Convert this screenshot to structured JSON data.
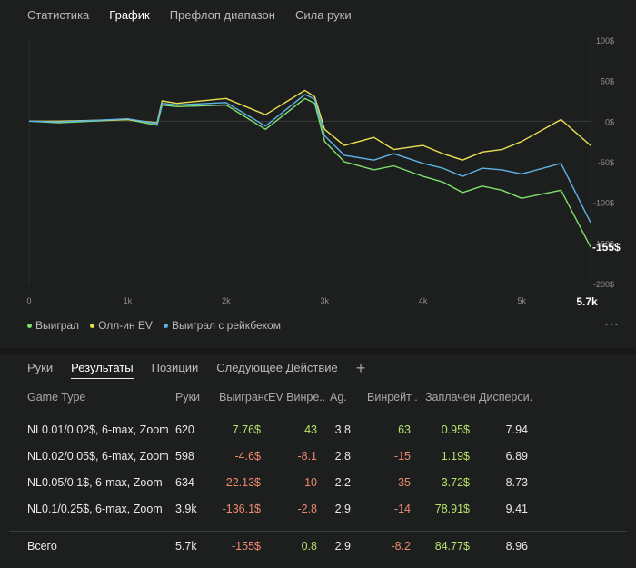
{
  "top_tabs": [
    {
      "label": "Статистика"
    },
    {
      "label": "График"
    },
    {
      "label": "Префлоп диапазон"
    },
    {
      "label": "Сила руки"
    }
  ],
  "colors": {
    "won": "#7ee06a",
    "allin_ev": "#e8e052",
    "won_rakeback": "#5fb2e6",
    "positive": "#b8e26a",
    "negative": "#ef8a6f"
  },
  "chart_data": {
    "type": "line",
    "x_ticks": [
      "0",
      "1k",
      "2k",
      "3k",
      "4k",
      "5k"
    ],
    "x_end_label": "5.7k",
    "y_ticks": [
      "100$",
      "50$",
      "0$",
      "-50$",
      "-100$",
      "-150$",
      "-200$"
    ],
    "end_value_label": "-155$",
    "xlim": [
      0,
      5700
    ],
    "ylim": [
      -200,
      100
    ],
    "grid": false,
    "legend_position": "bottom-left",
    "series": [
      {
        "name": "Выиграл",
        "color": "#7ee06a",
        "x": [
          0,
          300,
          1000,
          1300,
          1350,
          1500,
          2000,
          2400,
          2800,
          2900,
          3000,
          3200,
          3500,
          3700,
          4000,
          4200,
          4400,
          4600,
          4800,
          5000,
          5400,
          5700
        ],
        "y": [
          0,
          -2,
          2,
          -5,
          20,
          18,
          20,
          -10,
          28,
          22,
          -25,
          -50,
          -60,
          -55,
          -68,
          -75,
          -88,
          -80,
          -85,
          -95,
          -85,
          -155
        ]
      },
      {
        "name": "Олл-ин EV",
        "color": "#e8e052",
        "x": [
          0,
          300,
          1000,
          1300,
          1350,
          1500,
          2000,
          2400,
          2800,
          2900,
          3000,
          3200,
          3500,
          3700,
          4000,
          4200,
          4400,
          4600,
          4800,
          5000,
          5400,
          5700
        ],
        "y": [
          0,
          0,
          2,
          -2,
          25,
          22,
          28,
          8,
          38,
          30,
          -10,
          -30,
          -20,
          -35,
          -30,
          -40,
          -48,
          -38,
          -35,
          -25,
          2,
          -30
        ]
      },
      {
        "name": "Выиграл с рейкбеком",
        "color": "#5fb2e6",
        "x": [
          0,
          300,
          1000,
          1300,
          1350,
          1500,
          2000,
          2400,
          2800,
          2900,
          3000,
          3200,
          3500,
          3700,
          4000,
          4200,
          4400,
          4600,
          4800,
          5000,
          5400,
          5700
        ],
        "y": [
          0,
          -1,
          3,
          -3,
          22,
          20,
          23,
          -6,
          33,
          27,
          -18,
          -42,
          -48,
          -40,
          -52,
          -58,
          -68,
          -58,
          -60,
          -65,
          -52,
          -125
        ]
      }
    ]
  },
  "legend_more": "⋮",
  "bottom_tabs": [
    {
      "label": "Руки"
    },
    {
      "label": "Результаты"
    },
    {
      "label": "Позиции"
    },
    {
      "label": "Следующее Действие"
    }
  ],
  "add_tab_glyph": "+",
  "table": {
    "headers": [
      "Game Type",
      "Руки",
      "Выиграно",
      "EV Винре...",
      "Ag.",
      "Винрейт ...",
      "Заплачен...",
      "Дисперси..."
    ],
    "rows": [
      {
        "game": "NL0.01/0.02$, 6-max, Zoom",
        "hands": "620",
        "won": "7.76$",
        "ev": "43",
        "ag": "3.8",
        "winrate": "63",
        "paid": "0.95$",
        "variance": "7.94"
      },
      {
        "game": "NL0.02/0.05$, 6-max, Zoom",
        "hands": "598",
        "won": "-4.6$",
        "ev": "-8.1",
        "ag": "2.8",
        "winrate": "-15",
        "paid": "1.19$",
        "variance": "6.89"
      },
      {
        "game": "NL0.05/0.1$, 6-max, Zoom",
        "hands": "634",
        "won": "-22.13$",
        "ev": "-10",
        "ag": "2.2",
        "winrate": "-35",
        "paid": "3.72$",
        "variance": "8.73"
      },
      {
        "game": "NL0.1/0.25$, 6-max, Zoom",
        "hands": "3.9k",
        "won": "-136.1$",
        "ev": "-2.8",
        "ag": "2.9",
        "winrate": "-14",
        "paid": "78.91$",
        "variance": "9.41"
      }
    ],
    "total": {
      "game": "Всего",
      "hands": "5.7k",
      "won": "-155$",
      "ev": "0.8",
      "ag": "2.9",
      "winrate": "-8.2",
      "paid": "84.77$",
      "variance": "8.96"
    }
  }
}
